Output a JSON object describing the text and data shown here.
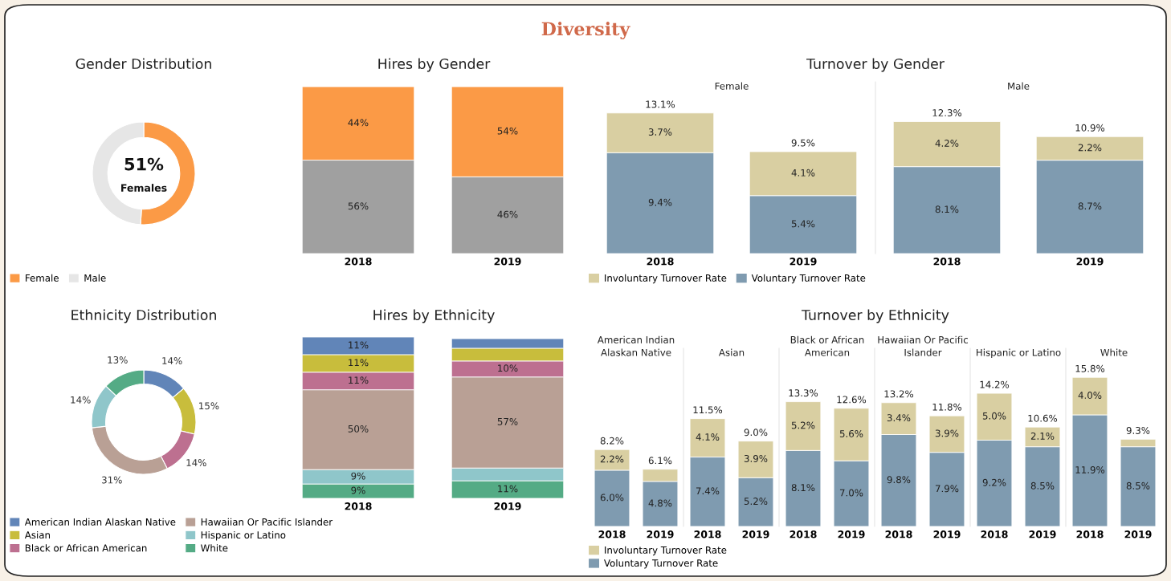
{
  "chart_data": [
    {
      "type": "other",
      "title": "Diversity"
    },
    {
      "type": "donut",
      "title": "Gender Distribution",
      "categories": [
        "Female",
        "Male"
      ],
      "values": [
        51,
        49
      ],
      "colors": [
        "#fb9a46",
        "#e6e6e6"
      ],
      "legend": "bottom left",
      "annotations": [
        "51%",
        "Females"
      ]
    },
    {
      "type": "bar",
      "title": "Hires by Gender",
      "categories": [
        "2018",
        "2019"
      ],
      "stacked": true,
      "ylim": [
        0,
        100
      ],
      "tick_labels": "x",
      "series": [
        {
          "color": "#a0a0a0",
          "values": [
            56,
            46
          ],
          "value_labels": [
            "56%",
            "46%"
          ]
        },
        {
          "color": "#fb9a46",
          "values": [
            44,
            54
          ],
          "value_labels": [
            "44%",
            "54%"
          ]
        }
      ]
    },
    {
      "type": "bar",
      "title": "Turnover by Gender",
      "subtitle": "Female",
      "categories": [
        "2018",
        "2019"
      ],
      "stacked": true,
      "ylim": [
        0,
        16
      ],
      "tick_labels": "x",
      "legend": "bottom left",
      "totals": [
        "13.1%",
        "9.5%"
      ],
      "series": [
        {
          "name": "Voluntary Turnover Rate",
          "color": "#7f9bb0",
          "values": [
            9.4,
            5.4
          ],
          "value_labels": [
            "9.4%",
            "5.4%"
          ]
        },
        {
          "name": "Involuntary Turnover Rate",
          "color": "#d9cfa2",
          "values": [
            3.7,
            4.1
          ],
          "value_labels": [
            "3.7%",
            "4.1%"
          ]
        }
      ]
    },
    {
      "type": "bar",
      "subtitle": "Male",
      "categories": [
        "2018",
        "2019"
      ],
      "stacked": true,
      "ylim": [
        0,
        16
      ],
      "tick_labels": "x",
      "totals": [
        "12.3%",
        "10.9%"
      ],
      "series": [
        {
          "color": "#7f9bb0",
          "values": [
            8.1,
            8.7
          ],
          "value_labels": [
            "8.1%",
            "8.7%"
          ]
        },
        {
          "color": "#d9cfa2",
          "values": [
            4.2,
            2.2
          ],
          "value_labels": [
            "4.2%",
            "2.2%"
          ]
        }
      ]
    },
    {
      "type": "donut",
      "title": "Ethnicity Distribution",
      "categories": [
        "American Indian Alaskan Native",
        "Asian",
        "Black or African American",
        "Hawaiian Or Pacific Islander",
        "Hispanic or Latino",
        "White"
      ],
      "values": [
        14,
        15,
        14,
        31,
        14,
        13
      ],
      "colors": [
        "#6185b8",
        "#c8bd3c",
        "#bd7090",
        "#b9a095",
        "#8fc6ca",
        "#54ab85"
      ],
      "legend": "bottom",
      "value_labels": [
        "14%",
        "15%",
        "14%",
        "31%",
        "14%",
        "13%"
      ]
    },
    {
      "type": "bar",
      "title": "Hires by Ethnicity",
      "categories": [
        "2018",
        "2019"
      ],
      "stacked": true,
      "ylim": [
        0,
        101
      ],
      "tick_labels": "x",
      "series": [
        {
          "color": "#54ab85",
          "values": [
            9,
            11
          ],
          "value_labels": [
            "9%",
            "11%"
          ]
        },
        {
          "color": "#8fc6ca",
          "values": [
            9,
            8
          ],
          "value_labels": [
            "9%",
            null
          ]
        },
        {
          "color": "#b9a095",
          "values": [
            50,
            57
          ],
          "value_labels": [
            "50%",
            "57%"
          ]
        },
        {
          "color": "#bd7090",
          "values": [
            11,
            10
          ],
          "value_labels": [
            "11%",
            "10%"
          ]
        },
        {
          "color": "#c8bd3c",
          "values": [
            11,
            8
          ],
          "value_labels": [
            "11%",
            null
          ]
        },
        {
          "color": "#6185b8",
          "values": [
            11,
            6
          ],
          "value_labels": [
            "11%",
            null
          ]
        }
      ]
    },
    {
      "type": "other",
      "title": "Turnover by Ethnicity"
    },
    {
      "type": "bar",
      "subtitle": "American Indian\nAlaskan Native",
      "categories": [
        "2018",
        "2019"
      ],
      "stacked": true,
      "ylim": [
        0,
        19
      ],
      "tick_labels": "x",
      "legend": "bottom",
      "totals": [
        "8.2%",
        "6.1%"
      ],
      "series": [
        {
          "name": "Voluntary Turnover Rate",
          "color": "#7f9bb0",
          "values": [
            6.0,
            4.8
          ],
          "value_labels": [
            "6.0%",
            "4.8%"
          ]
        },
        {
          "name": "Involuntary Turnover Rate",
          "color": "#d9cfa2",
          "values": [
            2.2,
            1.3
          ],
          "value_labels": [
            "2.2%",
            null
          ]
        }
      ]
    },
    {
      "type": "bar",
      "subtitle": "Asian",
      "categories": [
        "2018",
        "2019"
      ],
      "stacked": true,
      "ylim": [
        0,
        19
      ],
      "tick_labels": "x",
      "totals": [
        "11.5%",
        "9.0%"
      ],
      "series": [
        {
          "color": "#7f9bb0",
          "values": [
            7.4,
            5.2
          ],
          "value_labels": [
            "7.4%",
            "5.2%"
          ]
        },
        {
          "color": "#d9cfa2",
          "values": [
            4.1,
            3.9
          ],
          "value_labels": [
            "4.1%",
            "3.9%"
          ]
        }
      ]
    },
    {
      "type": "bar",
      "subtitle": "Black or African\nAmerican",
      "categories": [
        "2018",
        "2019"
      ],
      "stacked": true,
      "ylim": [
        0,
        19
      ],
      "tick_labels": "x",
      "totals": [
        "13.3%",
        "12.6%"
      ],
      "series": [
        {
          "color": "#7f9bb0",
          "values": [
            8.1,
            7.0
          ],
          "value_labels": [
            "8.1%",
            "7.0%"
          ]
        },
        {
          "color": "#d9cfa2",
          "values": [
            5.2,
            5.6
          ],
          "value_labels": [
            "5.2%",
            "5.6%"
          ]
        }
      ]
    },
    {
      "type": "bar",
      "subtitle": "Hawaiian Or Pacific\nIslander",
      "categories": [
        "2018",
        "2019"
      ],
      "stacked": true,
      "ylim": [
        0,
        19
      ],
      "tick_labels": "x",
      "totals": [
        "13.2%",
        "11.8%"
      ],
      "series": [
        {
          "color": "#7f9bb0",
          "values": [
            9.8,
            7.9
          ],
          "value_labels": [
            "9.8%",
            "7.9%"
          ]
        },
        {
          "color": "#d9cfa2",
          "values": [
            3.4,
            3.9
          ],
          "value_labels": [
            "3.4%",
            "3.9%"
          ]
        }
      ]
    },
    {
      "type": "bar",
      "subtitle": "Hispanic or Latino",
      "categories": [
        "2018",
        "2019"
      ],
      "stacked": true,
      "ylim": [
        0,
        19
      ],
      "tick_labels": "x",
      "totals": [
        "14.2%",
        "10.6%"
      ],
      "series": [
        {
          "color": "#7f9bb0",
          "values": [
            9.2,
            8.5
          ],
          "value_labels": [
            "9.2%",
            "8.5%"
          ]
        },
        {
          "color": "#d9cfa2",
          "values": [
            5.0,
            2.1
          ],
          "value_labels": [
            "5.0%",
            "2.1%"
          ]
        }
      ]
    },
    {
      "type": "bar",
      "subtitle": "White",
      "categories": [
        "2018",
        "2019"
      ],
      "stacked": true,
      "ylim": [
        0,
        19
      ],
      "tick_labels": "x",
      "totals": [
        "15.8%",
        "9.3%"
      ],
      "series": [
        {
          "color": "#7f9bb0",
          "values": [
            11.9,
            8.5
          ],
          "value_labels": [
            "11.9%",
            "8.5%"
          ]
        },
        {
          "color": "#d9cfa2",
          "values": [
            4.0,
            0.8
          ],
          "value_labels": [
            "4.0%",
            null
          ]
        }
      ]
    }
  ]
}
